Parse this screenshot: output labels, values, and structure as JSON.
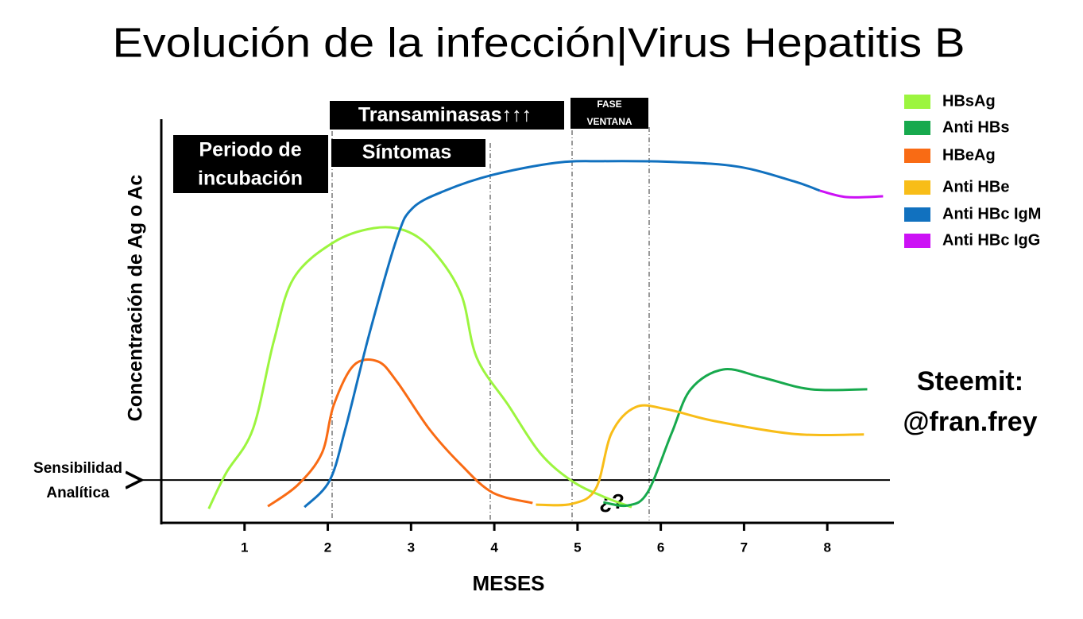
{
  "chart_data": {
    "type": "line",
    "title": "Evolución de la infección|Virus Hepatitis B",
    "y_label": "Concentración de Ag o Ac",
    "x_label": "MESES",
    "xlim": [
      0,
      8.8
    ],
    "ylim": [
      0,
      100
    ],
    "xticks": [
      1,
      2,
      3,
      4,
      5,
      6,
      7,
      8
    ],
    "threshold": {
      "value": 10.6,
      "label": [
        "Sensibilidad",
        "Analítica"
      ]
    },
    "annotations": {
      "incubation": [
        "Periodo de",
        "incubación"
      ],
      "symptoms": "Síntomas",
      "transaminases": "Transaminasas↑↑↑",
      "window": [
        "FASE",
        "VENTANA"
      ],
      "unknown": "¿?",
      "credit": [
        "Steemit:",
        "@fran.frey"
      ]
    },
    "series": [
      {
        "name": "HBsAg",
        "color": "#9cf53f",
        "x": [
          0.57,
          0.78,
          1.1,
          1.35,
          1.59,
          2.07,
          2.55,
          2.93,
          3.26,
          3.6,
          3.79,
          4.17,
          4.55,
          4.93,
          5.31,
          5.65
        ],
        "values": [
          3.5,
          12.4,
          23.2,
          44.9,
          60.6,
          69.5,
          73,
          72.4,
          67.5,
          56.7,
          40.9,
          29.1,
          17.3,
          10.4,
          6.5,
          3.9
        ]
      },
      {
        "name": "Anti HBs",
        "color": "#17a94d",
        "x": [
          5.31,
          5.6,
          5.84,
          6.13,
          6.36,
          6.75,
          7.22,
          7.8,
          8.48
        ],
        "values": [
          5.1,
          4.3,
          7.5,
          22.2,
          33.1,
          38,
          36,
          33.1,
          33.1
        ]
      },
      {
        "name": "HBeAg",
        "color": "#f96b14",
        "x": [
          1.28,
          1.64,
          1.93,
          2.07,
          2.31,
          2.6,
          2.83,
          3.22,
          3.6,
          3.98,
          4.46
        ],
        "values": [
          4.1,
          9.4,
          17.3,
          29.1,
          39,
          40,
          35,
          23.2,
          14.4,
          7.5,
          4.9
        ]
      },
      {
        "name": "Anti HBe",
        "color": "#f8bd18",
        "x": [
          4.5,
          4.93,
          5.22,
          5.41,
          5.7,
          6.08,
          6.65,
          7.61,
          8.44
        ],
        "values": [
          4.5,
          4.7,
          8.5,
          22.3,
          28.7,
          28.1,
          25.2,
          22,
          21.9
        ]
      },
      {
        "name": "Anti HBc IgM",
        "color": "#1171bf",
        "x": [
          1.72,
          2.02,
          2.21,
          2.5,
          2.83,
          3.02,
          3.41,
          3.98,
          4.74,
          5.31,
          6.17,
          6.94,
          7.6,
          7.91
        ],
        "values": [
          3.9,
          10.4,
          23.2,
          46.9,
          70.5,
          78,
          82.3,
          86.2,
          89.2,
          89.6,
          89.4,
          88.2,
          84.6,
          82.3
        ]
      },
      {
        "name": "Anti HBc IgG",
        "color": "#cc11f5",
        "x": [
          7.91,
          8.23,
          8.67
        ],
        "values": [
          82.3,
          80.7,
          80.9
        ]
      }
    ]
  }
}
